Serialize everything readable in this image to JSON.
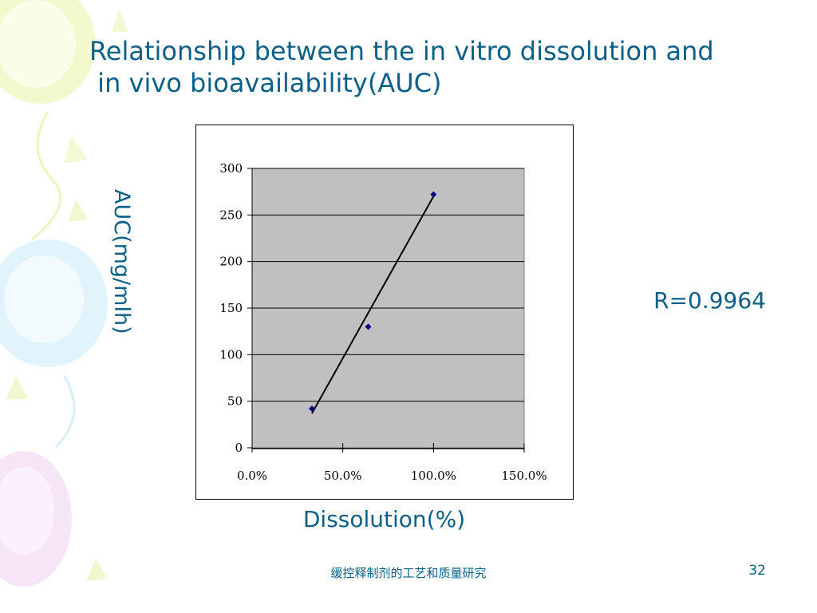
{
  "slide": {
    "title_line1": "Relationship between the in vitro dissolution and",
    "title_line2": " in vivo bioavailability(AUC)",
    "ylabel": "AUC(mg/mlh)",
    "xlabel": "Dissolution(%)",
    "r_value": "R=0.9964",
    "footer": "缓控释制剂的工艺和质量研究",
    "page_number": "32"
  },
  "colors": {
    "text_accent": "#0a5f86",
    "plot_area": "#c0c0c0",
    "marker": "#000080",
    "trendline": "#000000"
  },
  "chart_data": {
    "type": "scatter",
    "x": [
      33,
      64,
      100
    ],
    "y": [
      42,
      130,
      272
    ],
    "xlim": [
      0,
      150
    ],
    "ylim": [
      0,
      300
    ],
    "x_ticks": [
      0,
      50,
      100,
      150
    ],
    "x_tick_labels": [
      "0.0%",
      "50.0%",
      "100.0%",
      "150.0%"
    ],
    "y_ticks": [
      0,
      50,
      100,
      150,
      200,
      250,
      300
    ],
    "y_tick_labels": [
      "0",
      "50",
      "100",
      "150",
      "200",
      "250",
      "300"
    ],
    "trendline": {
      "x": [
        33,
        100
      ],
      "y": [
        37,
        270
      ]
    },
    "grid": "horizontal",
    "legend": "none"
  }
}
